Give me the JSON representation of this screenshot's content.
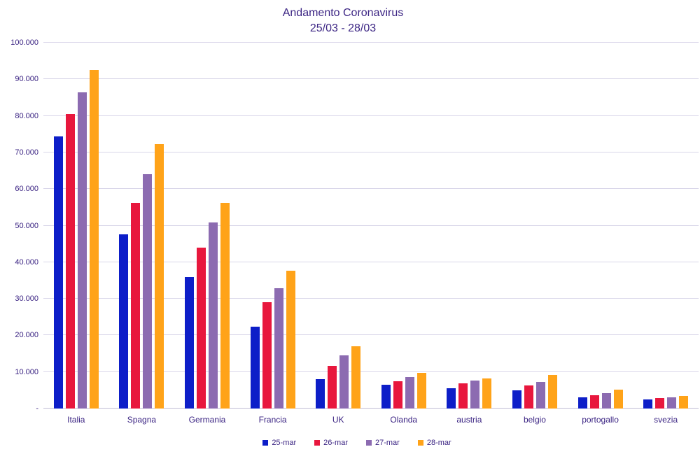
{
  "chart": {
    "title_line1": "Andamento Coronavirus",
    "title_line2": "25/03 - 28/03"
  },
  "colors": {
    "text": "#3B2483",
    "gridline": "#D9D6E9",
    "axis_line": "#C0BDD4",
    "series_25_mar": "#0D1EC8",
    "series_26_mar": "#E8173D",
    "series_27_mar": "#8C6BB1",
    "series_28_mar": "#FFA319"
  },
  "chart_data": {
    "type": "bar",
    "title": "Andamento Coronavirus 25/03 - 28/03",
    "xlabel": "",
    "ylabel": "",
    "ylim": [
      0,
      100000
    ],
    "grid": "horizontal",
    "legend_position": "bottom",
    "categories": [
      "Italia",
      "Spagna",
      "Germania",
      "Francia",
      "UK",
      "Olanda",
      "austria",
      "belgio",
      "portogallo",
      "svezia"
    ],
    "series": [
      {
        "name": "25-mar",
        "color": "#0D1EC8",
        "values": [
          74386,
          47610,
          35900,
          22300,
          8100,
          6412,
          5588,
          4937,
          2995,
          2510
        ]
      },
      {
        "name": "26-mar",
        "color": "#E8173D",
        "values": [
          80539,
          56188,
          43938,
          29155,
          11658,
          7431,
          6909,
          6235,
          3544,
          2840
        ]
      },
      {
        "name": "27-mar",
        "color": "#8C6BB1",
        "values": [
          86498,
          64059,
          50871,
          32964,
          14543,
          8603,
          7657,
          7284,
          4268,
          3069
        ]
      },
      {
        "name": "28-mar",
        "color": "#FFA319",
        "values": [
          92472,
          72248,
          56200,
          37575,
          17089,
          9762,
          8271,
          9134,
          5170,
          3447
        ]
      }
    ],
    "y_ticks": [
      {
        "value": 0,
        "label": "-"
      },
      {
        "value": 10000,
        "label": "10.000"
      },
      {
        "value": 20000,
        "label": "20.000"
      },
      {
        "value": 30000,
        "label": "30.000"
      },
      {
        "value": 40000,
        "label": "40.000"
      },
      {
        "value": 50000,
        "label": "50.000"
      },
      {
        "value": 60000,
        "label": "60.000"
      },
      {
        "value": 70000,
        "label": "70.000"
      },
      {
        "value": 80000,
        "label": "80.000"
      },
      {
        "value": 90000,
        "label": "90.000"
      },
      {
        "value": 100000,
        "label": "100.000"
      }
    ]
  }
}
